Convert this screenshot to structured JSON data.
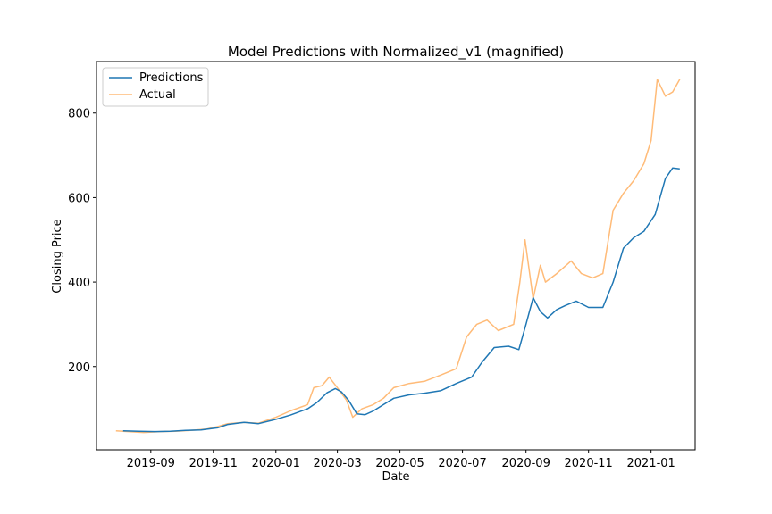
{
  "chart_data": {
    "type": "line",
    "title": "Model Predictions with Normalized_v1 (magnified)",
    "xlabel": "Date",
    "ylabel": "Closing Price",
    "x_range": [
      "2019-07-10",
      "2021-02-13"
    ],
    "ylim": [
      3,
      922
    ],
    "x_ticks": [
      "2019-09",
      "2019-11",
      "2020-01",
      "2020-03",
      "2020-05",
      "2020-07",
      "2020-09",
      "2020-11",
      "2021-01"
    ],
    "y_ticks": [
      200,
      400,
      600,
      800
    ],
    "grid": false,
    "legend_position": "upper-left",
    "series": [
      {
        "name": "Predictions",
        "color": "#1f77b4",
        "points": [
          [
            "2019-08-05",
            48
          ],
          [
            "2019-08-20",
            47
          ],
          [
            "2019-09-05",
            46
          ],
          [
            "2019-09-20",
            47
          ],
          [
            "2019-10-05",
            49
          ],
          [
            "2019-10-20",
            50
          ],
          [
            "2019-11-05",
            55
          ],
          [
            "2019-11-15",
            63
          ],
          [
            "2019-12-01",
            68
          ],
          [
            "2019-12-15",
            65
          ],
          [
            "2020-01-01",
            75
          ],
          [
            "2020-01-15",
            85
          ],
          [
            "2020-02-01",
            100
          ],
          [
            "2020-02-10",
            115
          ],
          [
            "2020-02-20",
            138
          ],
          [
            "2020-02-28",
            148
          ],
          [
            "2020-03-05",
            140
          ],
          [
            "2020-03-12",
            120
          ],
          [
            "2020-03-20",
            88
          ],
          [
            "2020-03-28",
            86
          ],
          [
            "2020-04-05",
            95
          ],
          [
            "2020-04-15",
            110
          ],
          [
            "2020-04-25",
            125
          ],
          [
            "2020-05-10",
            133
          ],
          [
            "2020-05-25",
            137
          ],
          [
            "2020-06-10",
            143
          ],
          [
            "2020-06-25",
            160
          ],
          [
            "2020-07-10",
            175
          ],
          [
            "2020-07-20",
            210
          ],
          [
            "2020-08-01",
            245
          ],
          [
            "2020-08-15",
            248
          ],
          [
            "2020-08-25",
            240
          ],
          [
            "2020-09-01",
            300
          ],
          [
            "2020-09-08",
            363
          ],
          [
            "2020-09-15",
            330
          ],
          [
            "2020-09-22",
            315
          ],
          [
            "2020-10-01",
            335
          ],
          [
            "2020-10-10",
            345
          ],
          [
            "2020-10-20",
            355
          ],
          [
            "2020-11-01",
            340
          ],
          [
            "2020-11-15",
            340
          ],
          [
            "2020-11-25",
            400
          ],
          [
            "2020-12-05",
            480
          ],
          [
            "2020-12-15",
            505
          ],
          [
            "2020-12-25",
            520
          ],
          [
            "2021-01-05",
            560
          ],
          [
            "2021-01-15",
            645
          ],
          [
            "2021-01-22",
            670
          ],
          [
            "2021-01-29",
            668
          ]
        ]
      },
      {
        "name": "Actual",
        "color": "#ffbb78",
        "points": [
          [
            "2019-07-29",
            48
          ],
          [
            "2019-08-10",
            46
          ],
          [
            "2019-08-25",
            44
          ],
          [
            "2019-09-10",
            46
          ],
          [
            "2019-09-25",
            47
          ],
          [
            "2019-10-10",
            49
          ],
          [
            "2019-10-25",
            52
          ],
          [
            "2019-11-05",
            58
          ],
          [
            "2019-11-15",
            65
          ],
          [
            "2019-12-01",
            68
          ],
          [
            "2019-12-15",
            66
          ],
          [
            "2020-01-01",
            80
          ],
          [
            "2020-01-15",
            95
          ],
          [
            "2020-02-01",
            110
          ],
          [
            "2020-02-07",
            150
          ],
          [
            "2020-02-15",
            155
          ],
          [
            "2020-02-22",
            175
          ],
          [
            "2020-03-01",
            150
          ],
          [
            "2020-03-10",
            120
          ],
          [
            "2020-03-16",
            80
          ],
          [
            "2020-03-25",
            100
          ],
          [
            "2020-04-05",
            110
          ],
          [
            "2020-04-15",
            125
          ],
          [
            "2020-04-25",
            150
          ],
          [
            "2020-05-10",
            160
          ],
          [
            "2020-05-25",
            165
          ],
          [
            "2020-06-10",
            180
          ],
          [
            "2020-06-25",
            195
          ],
          [
            "2020-07-05",
            270
          ],
          [
            "2020-07-15",
            300
          ],
          [
            "2020-07-25",
            310
          ],
          [
            "2020-08-05",
            285
          ],
          [
            "2020-08-20",
            300
          ],
          [
            "2020-08-26",
            400
          ],
          [
            "2020-08-31",
            500
          ],
          [
            "2020-09-08",
            360
          ],
          [
            "2020-09-15",
            440
          ],
          [
            "2020-09-20",
            400
          ],
          [
            "2020-10-01",
            420
          ],
          [
            "2020-10-15",
            450
          ],
          [
            "2020-10-25",
            420
          ],
          [
            "2020-11-05",
            410
          ],
          [
            "2020-11-15",
            420
          ],
          [
            "2020-11-25",
            570
          ],
          [
            "2020-12-05",
            610
          ],
          [
            "2020-12-15",
            640
          ],
          [
            "2020-12-25",
            680
          ],
          [
            "2021-01-01",
            735
          ],
          [
            "2021-01-07",
            880
          ],
          [
            "2021-01-15",
            840
          ],
          [
            "2021-01-22",
            850
          ],
          [
            "2021-01-29",
            880
          ]
        ]
      }
    ]
  }
}
